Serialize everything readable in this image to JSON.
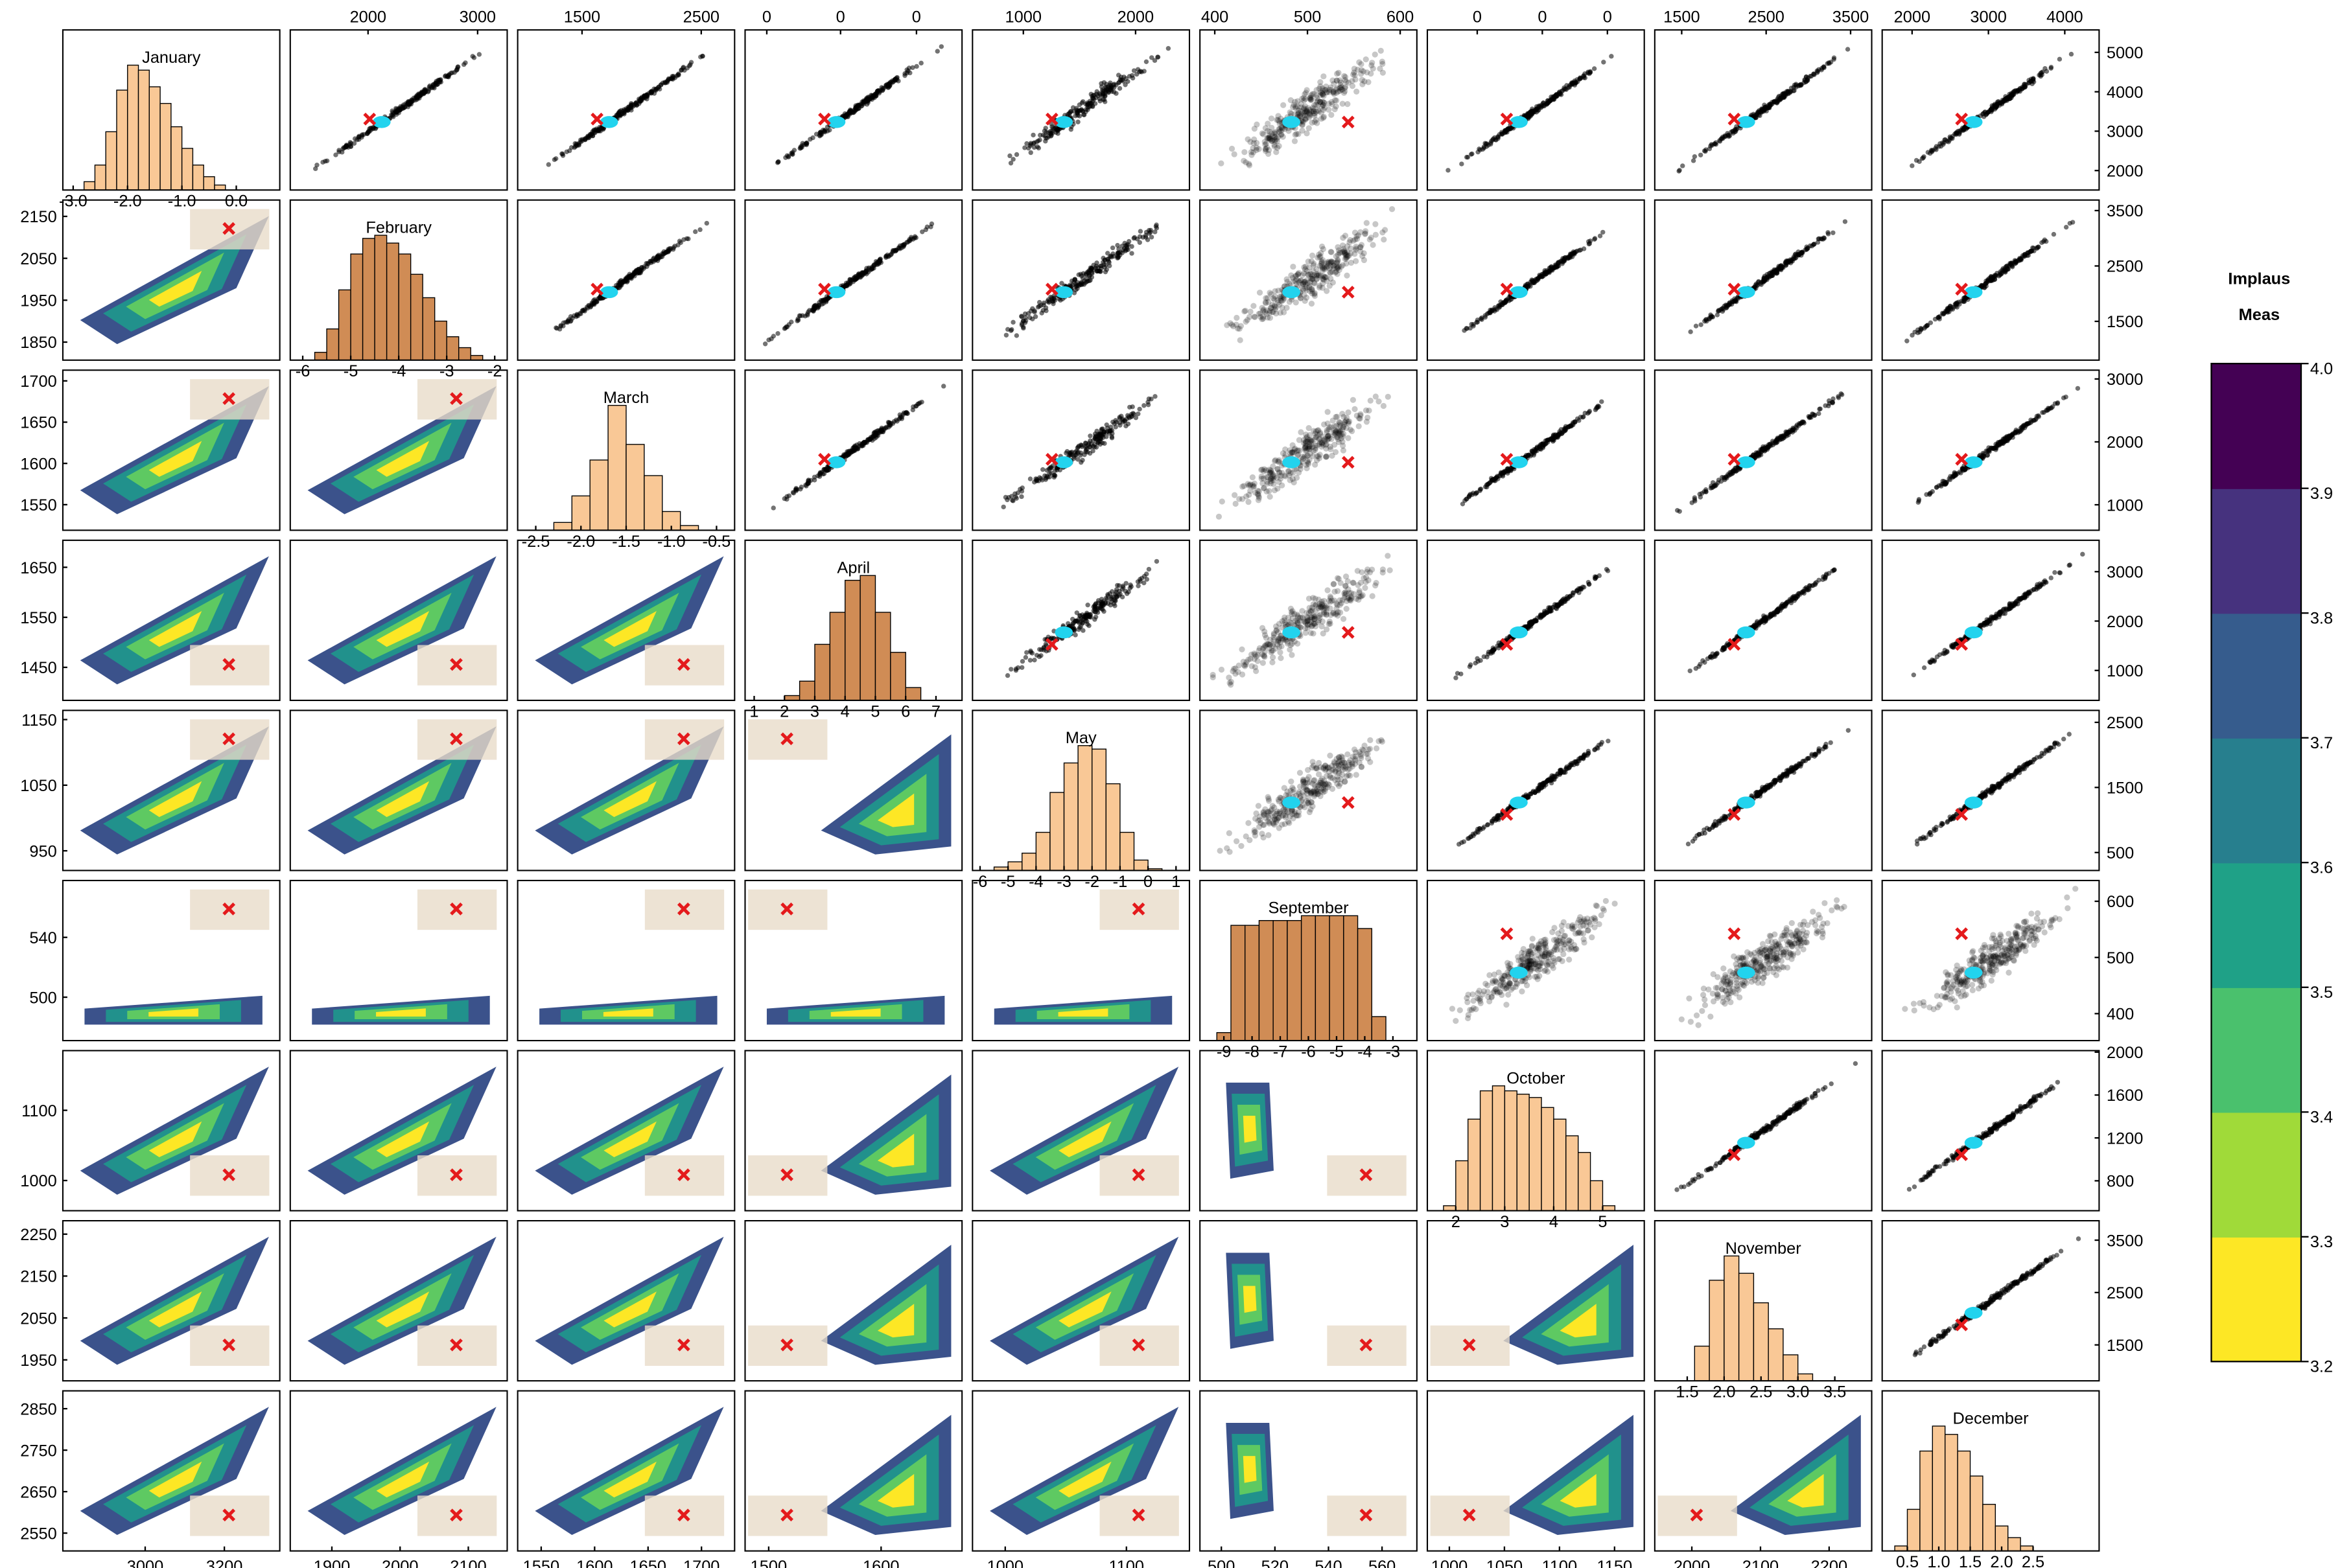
{
  "chart_data": {
    "type": "scatter_matrix",
    "variables": [
      {
        "name": "January",
        "xlim": [
          -3.19,
          0.8
        ],
        "xticks": [
          {
            "value": -3,
            "label": "-3.0"
          },
          {
            "value": -2,
            "label": "-2.0"
          },
          {
            "value": -1,
            "label": "-1.0"
          },
          {
            "value": 0,
            "label": "0.0"
          }
        ],
        "bins": [
          -2.8,
          -2.6,
          -2.4,
          -2.2,
          -2.0,
          -1.8,
          -1.6,
          -1.4,
          -1.2,
          -1.0,
          -0.8,
          -0.6,
          -0.4,
          -0.2
        ],
        "counts": [
          5,
          15,
          35,
          60,
          75,
          72,
          62,
          52,
          38,
          25,
          15,
          8,
          3
        ],
        "color": "#f9c896"
      },
      {
        "name": "February",
        "xlim": [
          -6.26,
          -1.74
        ],
        "xticks": [
          -6,
          -5,
          -4,
          -3,
          -2
        ],
        "bins": [
          -5.75,
          -5.5,
          -5.25,
          -5.0,
          -4.75,
          -4.5,
          -4.25,
          -4.0,
          -3.75,
          -3.5,
          -3.25,
          -3.0,
          -2.75,
          -2.5,
          -2.25
        ],
        "counts": [
          5,
          20,
          45,
          68,
          78,
          80,
          75,
          68,
          55,
          40,
          25,
          15,
          8,
          3
        ],
        "color": "#d08c55"
      },
      {
        "name": "March",
        "xlim": [
          -2.7,
          -0.3
        ],
        "xticks": [
          -2.5,
          {
            "value": -2,
            "label": "-2.0"
          },
          -1.5,
          {
            "value": -1,
            "label": "-1.0"
          },
          -0.5
        ],
        "bins": [
          -2.3,
          -2.1,
          -1.9,
          -1.7,
          -1.5,
          -1.3,
          -1.1,
          -0.9,
          -0.7
        ],
        "counts": [
          5,
          22,
          45,
          80,
          55,
          35,
          12,
          3
        ],
        "color": "#f9c896"
      },
      {
        "name": "April",
        "xlim": [
          0.7,
          7.86
        ],
        "xticks": [
          1,
          2,
          3,
          4,
          5,
          6,
          7
        ],
        "bins": [
          2,
          2.5,
          3,
          3.5,
          4,
          4.5,
          5,
          5.5,
          6,
          6.5
        ],
        "counts": [
          3,
          12,
          35,
          55,
          75,
          78,
          55,
          30,
          8
        ],
        "color": "#d08c55"
      },
      {
        "name": "May",
        "xlim": [
          -6.27,
          1.48
        ],
        "xticks": [
          -6,
          -5,
          -4,
          -3,
          -2,
          -1,
          0,
          1
        ],
        "bins": [
          -5.5,
          -5,
          -4.5,
          -4,
          -3.5,
          -3,
          -2.5,
          -2,
          -1.5,
          -1,
          -0.5,
          0,
          0.5
        ],
        "counts": [
          2,
          5,
          10,
          22,
          45,
          62,
          72,
          70,
          50,
          22,
          6,
          1
        ],
        "color": "#f9c896"
      },
      {
        "name": "September",
        "xlim": [
          -9.85,
          -2.15
        ],
        "xticks": [
          -9,
          -8,
          -7,
          -6,
          -5,
          -4,
          -3
        ],
        "bins": [
          -9.25,
          -8.75,
          -8.25,
          -7.75,
          -7.25,
          -6.75,
          -6.25,
          -5.75,
          -5.25,
          -4.75,
          -4.25,
          -3.75,
          -3.25
        ],
        "counts": [
          5,
          72,
          72,
          75,
          75,
          75,
          78,
          78,
          78,
          78,
          70,
          15
        ],
        "color": "#d08c55"
      },
      {
        "name": "October",
        "xlim": [
          1.42,
          5.85
        ],
        "xticks": [
          2,
          3,
          4,
          5
        ],
        "bins": [
          1.75,
          2.0,
          2.25,
          2.5,
          2.75,
          3.0,
          3.25,
          3.5,
          3.75,
          4.0,
          4.25,
          4.5,
          4.75,
          5.0,
          5.25
        ],
        "counts": [
          3,
          30,
          55,
          72,
          75,
          72,
          70,
          68,
          62,
          55,
          45,
          35,
          18,
          3
        ],
        "color": "#f9c896"
      },
      {
        "name": "November",
        "xlim": [
          1.06,
          4.0
        ],
        "xticks": [
          1.5,
          {
            "value": 2,
            "label": "2.0"
          },
          2.5,
          {
            "value": 3,
            "label": "3.0"
          },
          3.5
        ],
        "bins": [
          1.6,
          1.8,
          2.0,
          2.2,
          2.4,
          2.6,
          2.8,
          3.0,
          3.2
        ],
        "counts": [
          20,
          58,
          72,
          62,
          45,
          30,
          15,
          4
        ],
        "color": "#f9c896"
      },
      {
        "name": "December",
        "xlim": [
          0.1,
          3.55
        ],
        "xticks": [
          0.5,
          {
            "value": 1,
            "label": "1.0"
          },
          1.5,
          {
            "value": 2,
            "label": "2.0"
          },
          2.5
        ],
        "bins": [
          0.3,
          0.5,
          0.7,
          0.9,
          1.1,
          1.3,
          1.5,
          1.7,
          1.9,
          2.1,
          2.3,
          2.5
        ],
        "counts": [
          3,
          25,
          60,
          75,
          70,
          60,
          45,
          28,
          15,
          8,
          3
        ],
        "color": "#f9c896"
      }
    ],
    "top_axes": [
      {
        "xlim": [
          1290,
          3270
        ],
        "xticks": [
          2000,
          3000
        ]
      },
      {
        "xlim": [
          960,
          2780
        ],
        "xticks": [
          1500,
          2500
        ]
      },
      {
        "xlim": [
          0,
          1
        ],
        "xticks": [
          {
            "value": 0.1,
            "label": "0"
          },
          {
            "value": 0.44,
            "label": "0"
          },
          {
            "value": 0.79,
            "label": "0"
          }
        ]
      },
      {
        "xlim": [
          547,
          2480
        ],
        "xticks": [
          1000,
          2000
        ]
      },
      {
        "xlim": [
          384,
          618
        ],
        "xticks": [
          400,
          500,
          600
        ]
      },
      {
        "xlim": [
          0,
          1
        ],
        "xticks": [
          {
            "value": 0.23,
            "label": "0"
          },
          {
            "value": 0.53,
            "label": "0"
          },
          {
            "value": 0.83,
            "label": "0"
          }
        ]
      },
      {
        "xlim": [
          1181,
          3750
        ],
        "xticks": [
          1500,
          2500,
          3500
        ]
      },
      {
        "xlim": [
          1608,
          4450
        ],
        "xticks": [
          2000,
          3000,
          4000
        ]
      }
    ],
    "right_axes": [
      {
        "ylim": [
          1506,
          5570
        ],
        "yticks": [
          2000,
          3000,
          4000,
          5000
        ]
      },
      {
        "ylim": [
          800,
          3690
        ],
        "yticks": [
          1500,
          2500,
          3500
        ]
      },
      {
        "ylim": [
          595,
          3140
        ],
        "yticks": [
          1000,
          2000,
          3000
        ]
      },
      {
        "ylim": [
          394,
          3636
        ],
        "yticks": [
          1000,
          2000,
          3000
        ]
      },
      {
        "ylim": [
          224,
          2684
        ],
        "yticks": [
          500,
          1500,
          2500
        ]
      },
      {
        "ylim": [
          352,
          637
        ],
        "yticks": [
          400,
          500,
          600
        ]
      },
      {
        "ylim": [
          521,
          2014
        ],
        "yticks": [
          800,
          1200,
          1600,
          2000
        ]
      },
      {
        "ylim": [
          814,
          3871
        ],
        "yticks": [
          1500,
          2500,
          3500
        ]
      }
    ],
    "left_axes": [
      {
        "ylim": [
          1807,
          2189
        ],
        "yticks": [
          1850,
          1950,
          2050,
          2150
        ]
      },
      {
        "ylim": [
          1519,
          1713
        ],
        "yticks": [
          1550,
          1600,
          1650,
          1700
        ]
      },
      {
        "ylim": [
          1384,
          1704
        ],
        "yticks": [
          1450,
          1550,
          1650
        ]
      },
      {
        "ylim": [
          920,
          1164
        ],
        "yticks": [
          950,
          1050,
          1150
        ]
      },
      {
        "ylim": [
          471,
          578
        ],
        "yticks": [
          500,
          540
        ]
      },
      {
        "ylim": [
          957,
          1185
        ],
        "yticks": [
          1000,
          1100
        ]
      },
      {
        "ylim": [
          1900,
          2282
        ],
        "yticks": [
          1950,
          2050,
          2150,
          2250
        ]
      },
      {
        "ylim": [
          2507,
          2893
        ],
        "yticks": [
          2550,
          2650,
          2750,
          2850
        ]
      }
    ],
    "bottom_axes": [
      {
        "xlim": [
          2792,
          3340
        ],
        "xticks": [
          3000,
          3200
        ]
      },
      {
        "xlim": [
          1839,
          2157
        ],
        "xticks": [
          1900,
          2000,
          2100
        ]
      },
      {
        "xlim": [
          1528,
          1731
        ],
        "xticks": [
          1550,
          1600,
          1650,
          1700
        ]
      },
      {
        "xlim": [
          1479,
          1672
        ],
        "xticks": [
          1500,
          1600
        ]
      },
      {
        "xlim": [
          973,
          1152
        ],
        "xticks": [
          1000,
          1100
        ]
      },
      {
        "xlim": [
          492,
          573
        ],
        "xticks": [
          500,
          520,
          540,
          560
        ]
      },
      {
        "xlim": [
          980,
          1177
        ],
        "xticks": [
          1000,
          1050,
          1100,
          1150
        ]
      },
      {
        "xlim": [
          1946,
          2262
        ],
        "xticks": [
          2000,
          2100,
          2200
        ]
      }
    ],
    "colorbar": {
      "title": [
        "Implaus",
        "Meas"
      ],
      "lim": [
        3.2,
        4.0
      ],
      "ticks": [
        3.2,
        3.3,
        3.4,
        3.5,
        3.6,
        3.7,
        3.8,
        3.9,
        {
          "value": 4,
          "label": "4.0"
        }
      ],
      "colors": [
        "#fde725",
        "#a0da39",
        "#4ac16d",
        "#1fa187",
        "#277f8e",
        "#365c8d",
        "#46327e",
        "#440154"
      ]
    }
  }
}
